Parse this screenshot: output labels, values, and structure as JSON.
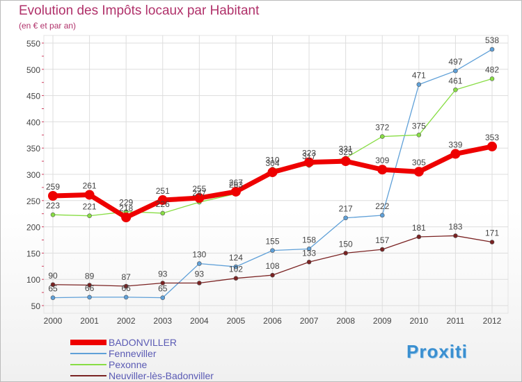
{
  "header": {
    "title": "Evolution des Impôts locaux par Habitant",
    "subtitle": "(en € et par an)"
  },
  "logo": {
    "text": "Proxiti"
  },
  "chart_data": {
    "type": "line",
    "title": "Evolution des Impôts locaux par Habitant",
    "subtitle": "(en € et par an)",
    "xlabel": "",
    "ylabel": "",
    "x": [
      "2000",
      "2001",
      "2002",
      "2003",
      "2004",
      "2005",
      "2006",
      "2007",
      "2008",
      "2009",
      "2010",
      "2011",
      "2012"
    ],
    "ylim": [
      50,
      550
    ],
    "yticks": [
      50,
      100,
      150,
      200,
      250,
      300,
      350,
      400,
      450,
      500,
      550
    ],
    "grid": true,
    "legend_position": "bottom-left",
    "series": [
      {
        "name": "BADONVILLER",
        "color": "#ee0000",
        "values": [
          259,
          261,
          218,
          251,
          255,
          267,
          304,
          323,
          325,
          309,
          305,
          339,
          353
        ]
      },
      {
        "name": "Fenneviller",
        "color": "#5fa0d8",
        "values": [
          65,
          66,
          66,
          65,
          130,
          124,
          155,
          158,
          217,
          222,
          471,
          497,
          538
        ]
      },
      {
        "name": "Pexonne",
        "color": "#88dd44",
        "values": [
          223,
          221,
          229,
          226,
          247,
          263,
          310,
          317,
          331,
          372,
          375,
          461,
          482
        ]
      },
      {
        "name": "Neuviller-lès-Badonviller",
        "color": "#7a2222",
        "values": [
          90,
          89,
          87,
          93,
          93,
          102,
          108,
          133,
          150,
          157,
          181,
          183,
          171
        ]
      }
    ]
  }
}
